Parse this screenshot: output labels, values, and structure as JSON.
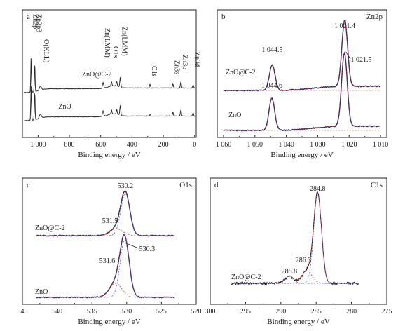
{
  "colors": {
    "spectrum": "#2b2b2b",
    "zno_c2_line": "#1a2a6a",
    "fit_red": "#c0392b",
    "fit_blue": "#3050c0",
    "envelope_red": "#d02020",
    "axis": "#222222"
  },
  "chart_data": [
    {
      "id": "a",
      "type": "line",
      "panel_label": "a",
      "title": "",
      "xlabel": "Binding energy / eV",
      "ylabel": "",
      "x_reversed": true,
      "xlim": [
        1100,
        -10
      ],
      "x_ticks": [
        1000,
        800,
        600,
        400,
        200,
        0
      ],
      "x_tick_labels": [
        "1 000",
        "800",
        "600",
        "400",
        "200",
        "0"
      ],
      "series": [
        {
          "name": "ZnO@C-2",
          "peaks_eV": [
            1044.5,
            1021.4,
            986,
            585,
            498,
            475,
            531,
            284.8,
            139,
            88,
            10
          ],
          "baseline": "upper"
        },
        {
          "name": "ZnO",
          "peaks_eV": [
            1044.6,
            1021.5,
            986,
            585,
            498,
            475,
            531,
            284.8,
            139,
            88,
            10
          ],
          "baseline": "lower"
        }
      ],
      "annotations": [
        {
          "text": "Zn2p",
          "x": 1044
        },
        {
          "text": "Zn2p3",
          "x": 1021
        },
        {
          "text": "O(KLL)",
          "x": 975
        },
        {
          "text": "Zn(LMM)",
          "x": 585
        },
        {
          "text": "O1s",
          "x": 531
        },
        {
          "text": "Zn(LMM)",
          "x": 475
        },
        {
          "text": "C1s",
          "x": 285
        },
        {
          "text": "Zn3s",
          "x": 139
        },
        {
          "text": "Zn3p",
          "x": 88
        },
        {
          "text": "Zn3d",
          "x": 10
        }
      ]
    },
    {
      "id": "b",
      "type": "line",
      "panel_label": "b",
      "title": "Zn2p",
      "xlabel": "Binding energy / eV",
      "x_reversed": true,
      "xlim": [
        1062,
        1008
      ],
      "x_ticks": [
        1060,
        1050,
        1040,
        1030,
        1020,
        1010
      ],
      "x_tick_labels": [
        "1 060",
        "1 050",
        "1 040",
        "1 030",
        "1 020",
        "1 010"
      ],
      "series": [
        {
          "name": "ZnO@C-2",
          "peaks": [
            {
              "center": 1044.5,
              "label": "1 044.5"
            },
            {
              "center": 1021.4,
              "label": "1 021.4"
            },
            {
              "center": 1021.5,
              "label": "1 021.5"
            }
          ]
        },
        {
          "name": "ZnO",
          "peaks": [
            {
              "center": 1044.6,
              "label": "1 044.6"
            },
            {
              "center": 1021.5,
              "label": ""
            }
          ]
        }
      ]
    },
    {
      "id": "c",
      "type": "line",
      "panel_label": "c",
      "title": "O1s",
      "xlabel": "Binding energy / eV",
      "x_reversed": true,
      "xlim": [
        545,
        520
      ],
      "x_ticks": [
        545,
        540,
        535,
        530,
        525,
        520
      ],
      "x_tick_labels": [
        "545",
        "540",
        "535",
        "530",
        "525",
        "520"
      ],
      "series": [
        {
          "name": "ZnO@C-2",
          "peaks": [
            {
              "center": 530.2,
              "label": "530.2"
            },
            {
              "center": 531.5,
              "label": "531.5"
            }
          ]
        },
        {
          "name": "ZnO",
          "peaks": [
            {
              "center": 530.3,
              "label": "530.3"
            },
            {
              "center": 531.6,
              "label": "531.6"
            }
          ]
        }
      ]
    },
    {
      "id": "d",
      "type": "line",
      "panel_label": "d",
      "title": "C1s",
      "xlabel": "Binding energy / eV",
      "x_reversed": true,
      "xlim": [
        300,
        275
      ],
      "x_ticks": [
        300,
        295,
        290,
        285,
        280,
        275
      ],
      "x_tick_labels": [
        "300",
        "295",
        "290",
        "285",
        "280",
        "275"
      ],
      "series": [
        {
          "name": "ZnO@C-2",
          "peaks": [
            {
              "center": 284.8,
              "label": "284.8"
            },
            {
              "center": 286.3,
              "label": "286.3"
            },
            {
              "center": 288.8,
              "label": "288.8"
            }
          ]
        }
      ]
    }
  ]
}
